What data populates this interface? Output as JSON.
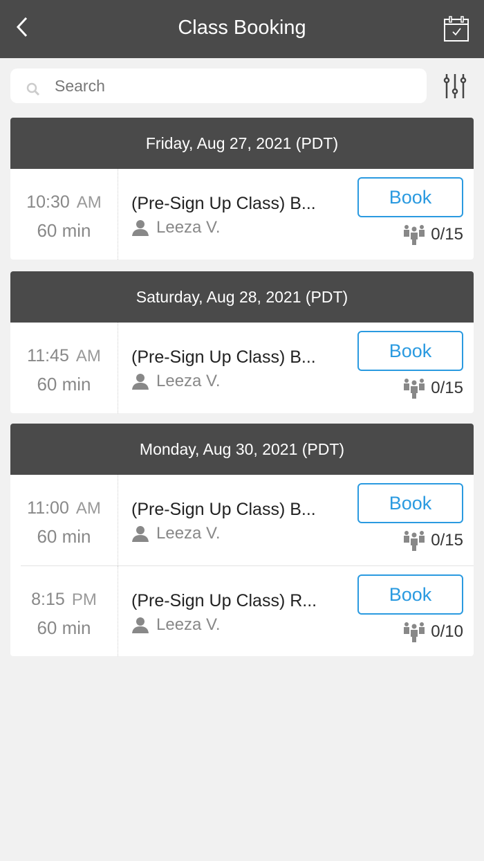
{
  "header": {
    "title": "Class Booking",
    "back_icon": "chevron-left-icon",
    "calendar_icon": "calendar-check-icon"
  },
  "search": {
    "placeholder": "Search",
    "value": "",
    "filter_icon": "sliders-icon"
  },
  "sections": [
    {
      "date": "Friday, Aug 27, 2021 (PDT)",
      "classes": [
        {
          "time": "10:30",
          "ampm": "AM",
          "duration": "60 min",
          "name": "(Pre-Sign Up Class) B...",
          "instructor": "Leeza V.",
          "book_label": "Book",
          "capacity": "0/15"
        }
      ]
    },
    {
      "date": "Saturday, Aug 28, 2021 (PDT)",
      "classes": [
        {
          "time": "11:45",
          "ampm": "AM",
          "duration": "60 min",
          "name": "(Pre-Sign Up Class) B...",
          "instructor": "Leeza V.",
          "book_label": "Book",
          "capacity": "0/15"
        }
      ]
    },
    {
      "date": "Monday, Aug 30, 2021 (PDT)",
      "classes": [
        {
          "time": "11:00",
          "ampm": "AM",
          "duration": "60 min",
          "name": "(Pre-Sign Up Class) B...",
          "instructor": "Leeza V.",
          "book_label": "Book",
          "capacity": "0/15"
        },
        {
          "time": "8:15",
          "ampm": "PM",
          "duration": "60 min",
          "name": "(Pre-Sign Up Class) R...",
          "instructor": "Leeza V.",
          "book_label": "Book",
          "capacity": "0/10"
        }
      ]
    }
  ],
  "colors": {
    "header": "#4a4a4a",
    "accent": "#2a9ae0",
    "background": "#f1f1f1"
  }
}
